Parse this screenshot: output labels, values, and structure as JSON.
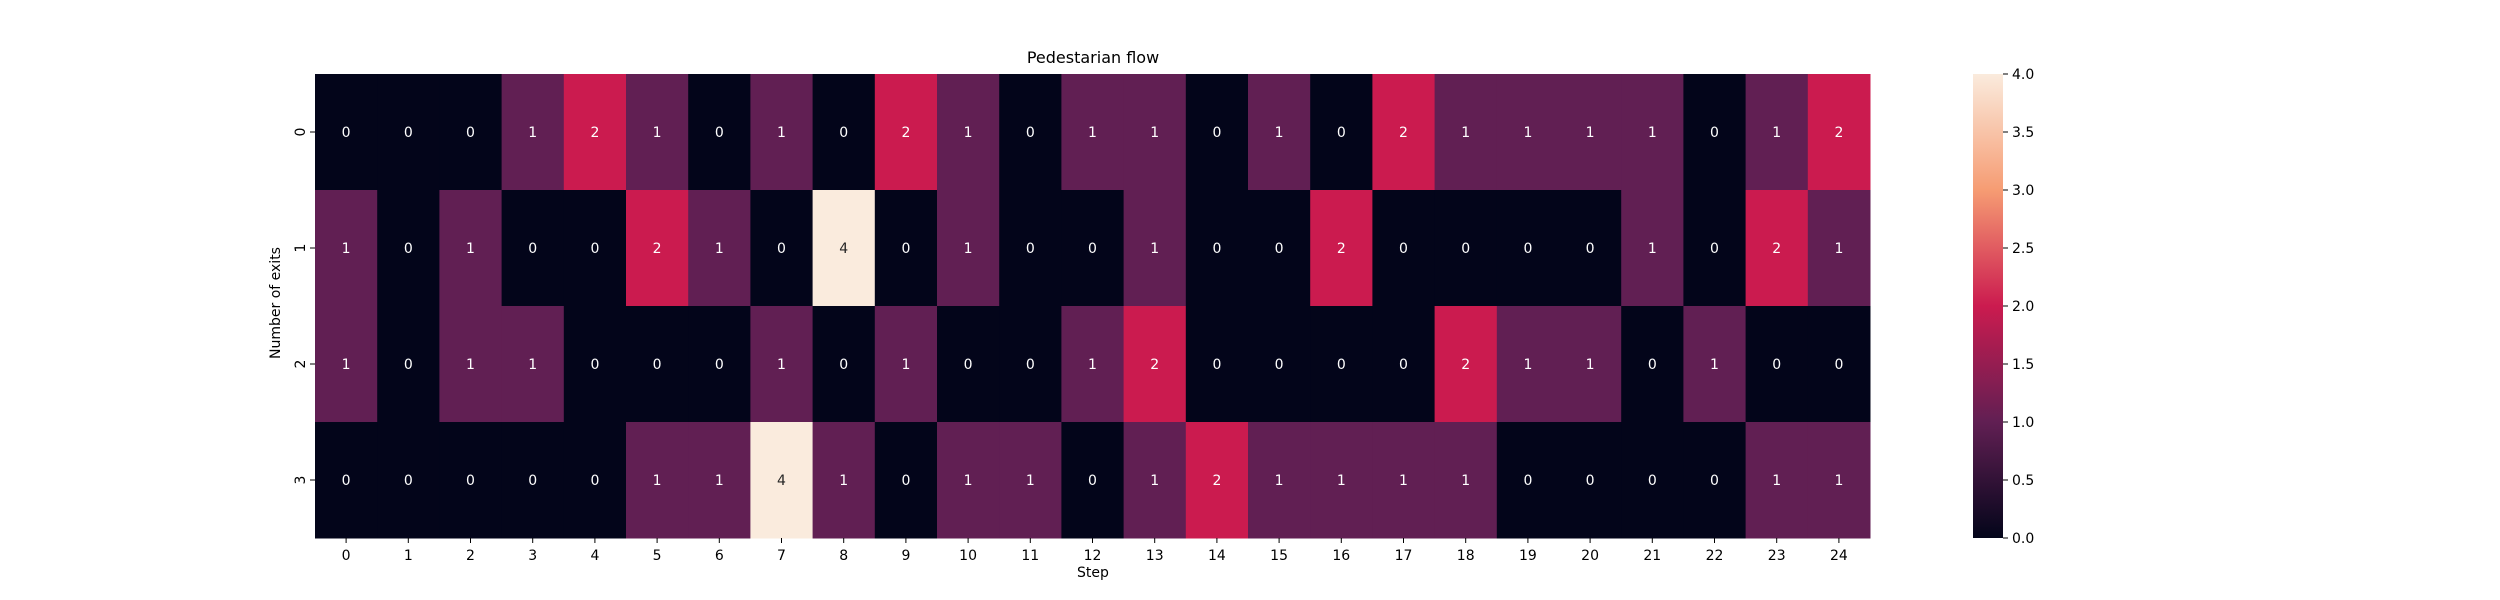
{
  "chart_data": {
    "type": "heatmap",
    "title": "Pedestarian flow",
    "xlabel": "Step",
    "ylabel": "Number of exits",
    "x_categories": [
      "0",
      "1",
      "2",
      "3",
      "4",
      "5",
      "6",
      "7",
      "8",
      "9",
      "10",
      "11",
      "12",
      "13",
      "14",
      "15",
      "16",
      "17",
      "18",
      "19",
      "20",
      "21",
      "22",
      "23",
      "24"
    ],
    "y_categories": [
      "0",
      "1",
      "2",
      "3"
    ],
    "values": [
      [
        0,
        0,
        0,
        1,
        2,
        1,
        0,
        1,
        0,
        2,
        1,
        0,
        1,
        1,
        0,
        1,
        0,
        2,
        1,
        1,
        1,
        1,
        0,
        1,
        2
      ],
      [
        1,
        0,
        1,
        0,
        0,
        2,
        1,
        0,
        4,
        0,
        1,
        0,
        0,
        1,
        0,
        0,
        2,
        0,
        0,
        0,
        0,
        1,
        0,
        2,
        1
      ],
      [
        1,
        0,
        1,
        1,
        0,
        0,
        0,
        1,
        0,
        1,
        0,
        0,
        1,
        2,
        0,
        0,
        0,
        0,
        2,
        1,
        1,
        0,
        1,
        0,
        0
      ],
      [
        0,
        0,
        0,
        0,
        0,
        1,
        1,
        4,
        1,
        0,
        1,
        1,
        0,
        1,
        2,
        1,
        1,
        1,
        1,
        0,
        0,
        0,
        0,
        1,
        1
      ]
    ],
    "color_range": [
      0,
      4
    ],
    "colorbar_ticks": [
      "0.0",
      "0.5",
      "1.0",
      "1.5",
      "2.0",
      "2.5",
      "3.0",
      "3.5",
      "4.0"
    ],
    "colormap": "rocket",
    "colormap_stops": [
      "#03051a",
      "#611f53",
      "#cb1b4f",
      "#f69c73",
      "#faebdd"
    ],
    "annotation_colors": {
      "dark_cell": "#ffffff",
      "light_cell": "#262626"
    }
  }
}
